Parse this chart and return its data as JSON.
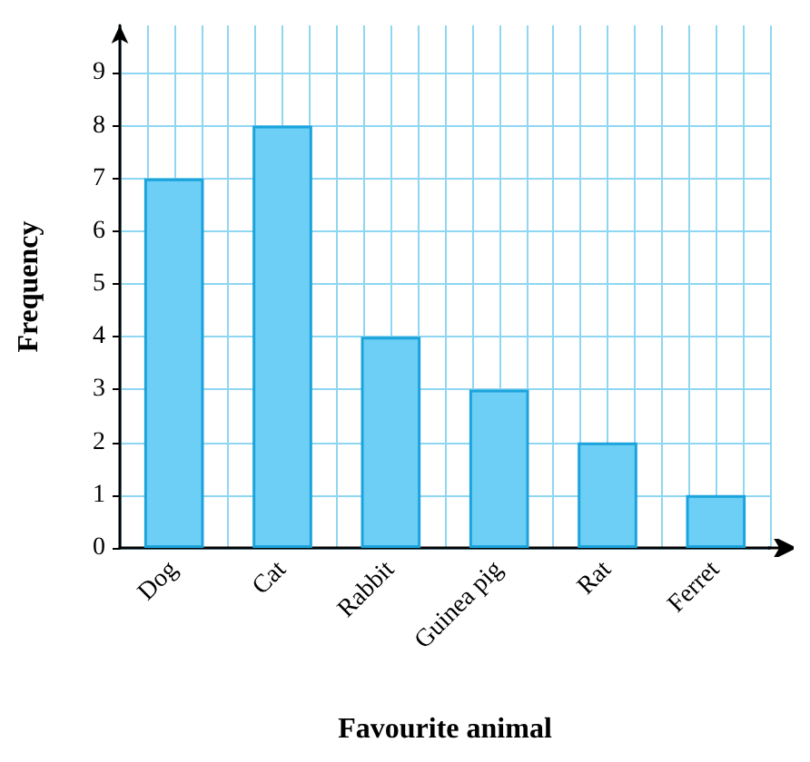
{
  "chart_data": {
    "type": "bar",
    "xlabel": "Favourite animal",
    "ylabel": "Frequency",
    "categories": [
      "Dog",
      "Cat",
      "Rabbit",
      "Guinea pig",
      "Rat",
      "Ferret"
    ],
    "values": [
      7,
      8,
      4,
      3,
      2,
      1
    ],
    "color": "#6dcff6",
    "ylim": [
      0,
      9.9
    ],
    "yticks": [
      0,
      1,
      2,
      3,
      4,
      5,
      6,
      7,
      8,
      9
    ],
    "grid": true
  }
}
